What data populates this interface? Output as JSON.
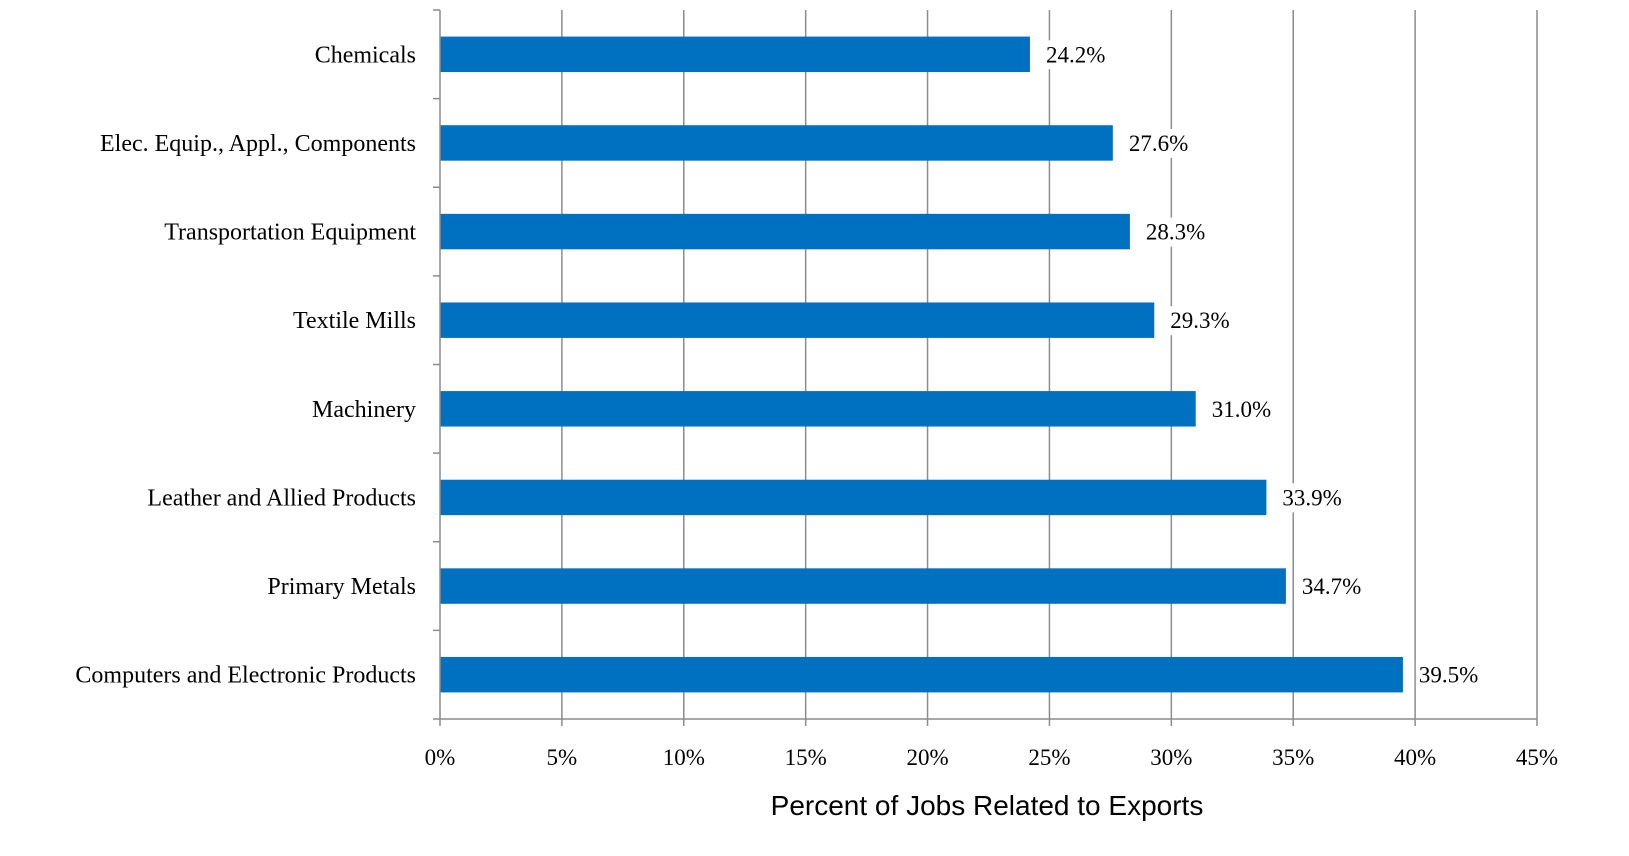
{
  "chart_data": {
    "type": "bar",
    "orientation": "horizontal",
    "title": "",
    "xlabel": "Percent of Jobs Related to Exports",
    "ylabel": "",
    "xlim": [
      0,
      45
    ],
    "x_tick_step": 5,
    "x_ticks": [
      "0%",
      "5%",
      "10%",
      "15%",
      "20%",
      "25%",
      "30%",
      "35%",
      "40%",
      "45%"
    ],
    "grid": "vertical",
    "legend": "none",
    "bar_color": "#0070C0",
    "categories": [
      "Chemicals",
      "Elec. Equip., Appl., Components",
      "Transportation Equipment",
      "Textile Mills",
      "Machinery",
      "Leather and Allied Products",
      "Primary Metals",
      "Computers and Electronic Products"
    ],
    "values": [
      24.2,
      27.6,
      28.3,
      29.3,
      31.0,
      33.9,
      34.7,
      39.5
    ],
    "data_labels": [
      "24.2%",
      "27.6%",
      "28.3%",
      "29.3%",
      "31.0%",
      "33.9%",
      "34.7%",
      "39.5%"
    ]
  }
}
